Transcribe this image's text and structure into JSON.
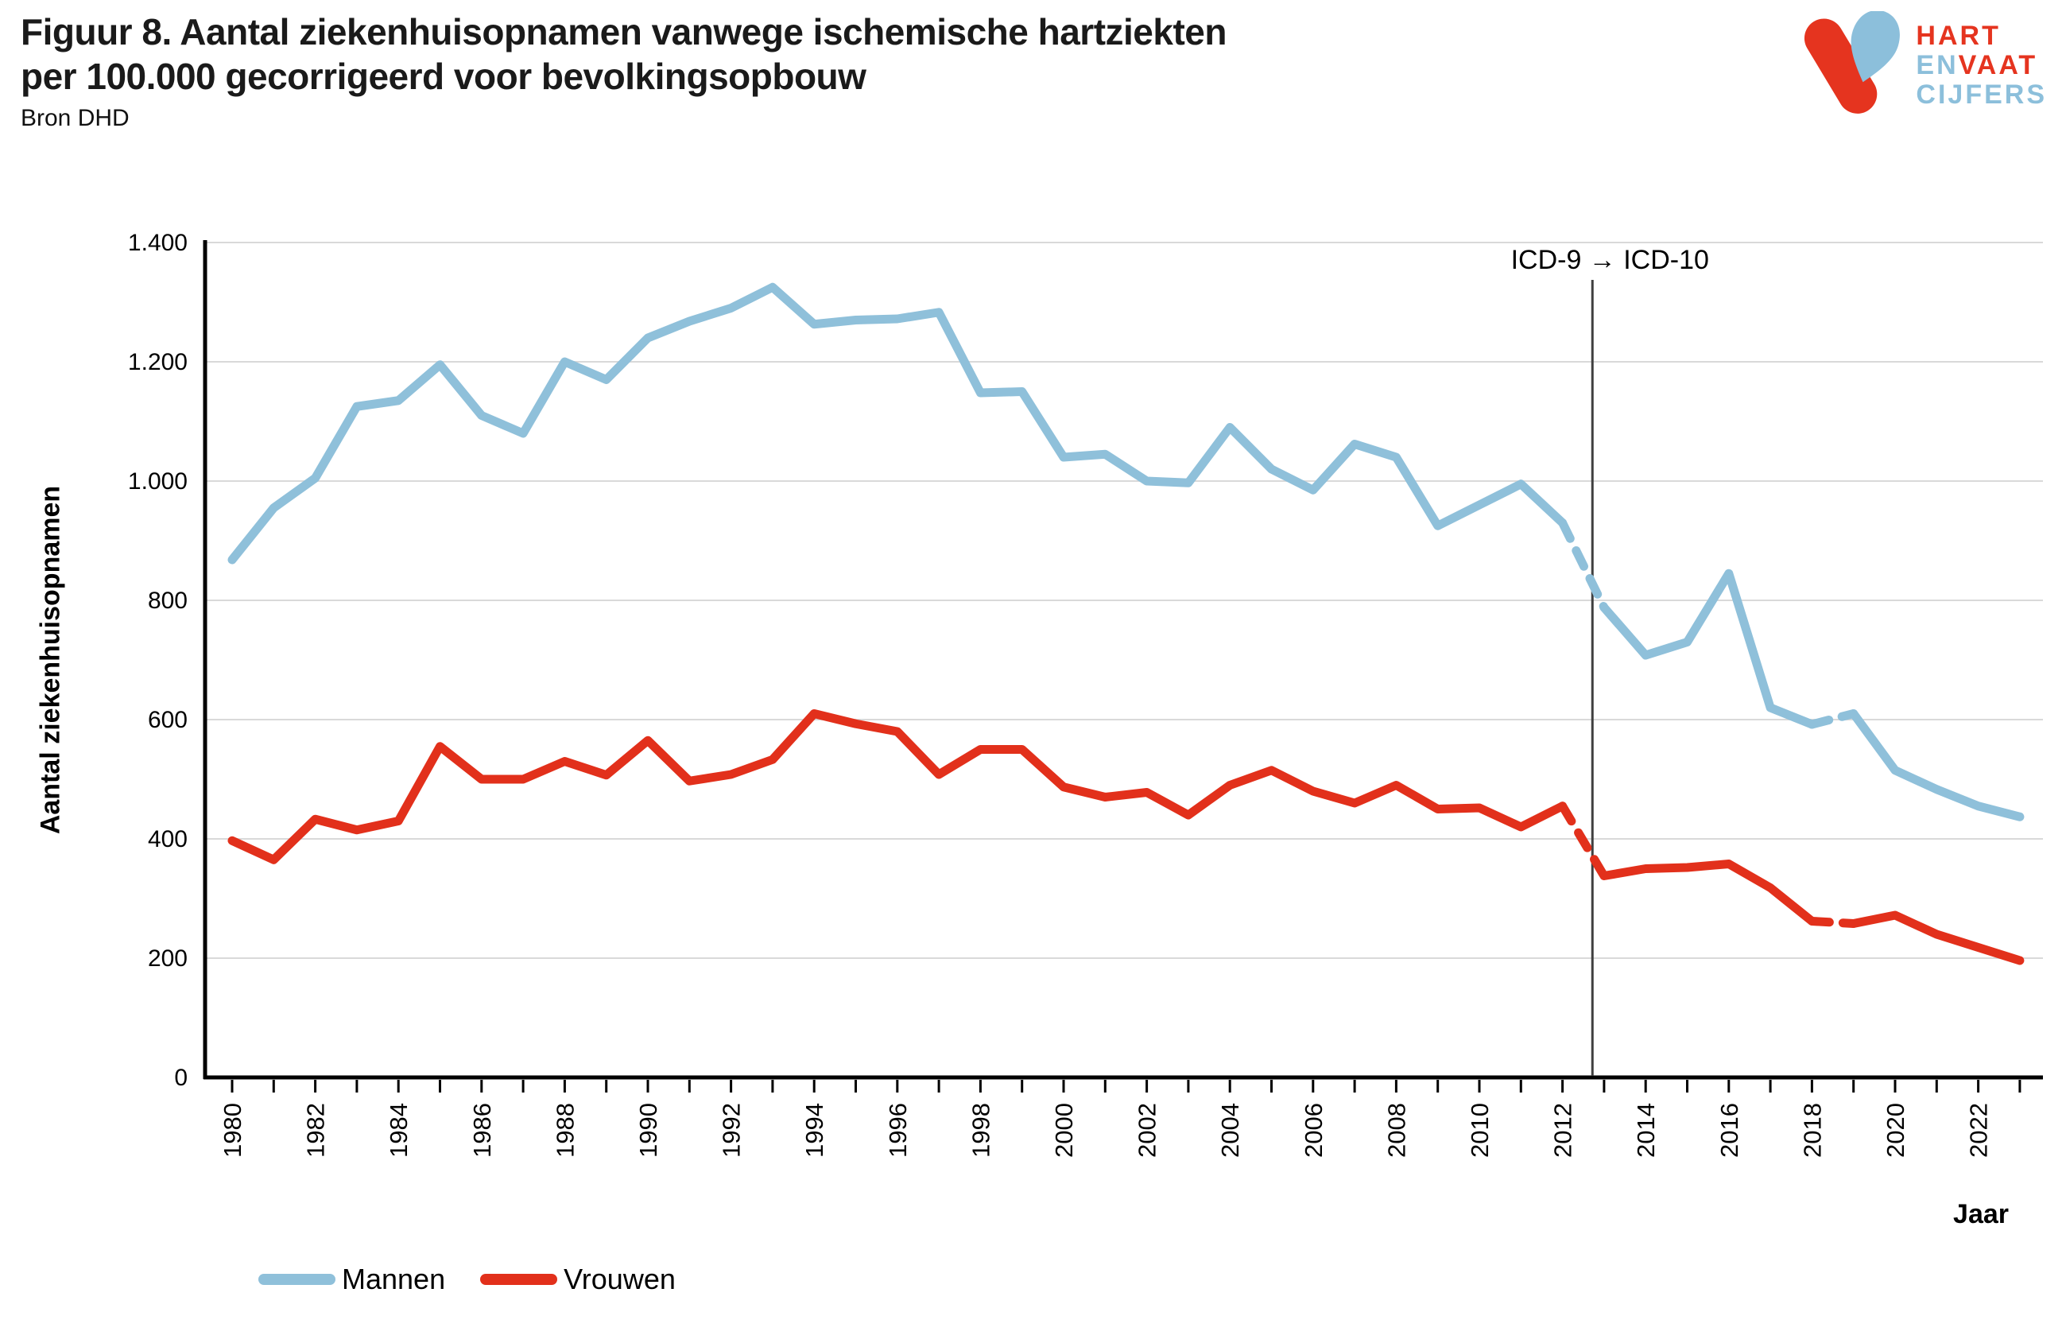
{
  "header": {
    "title_line1": "Figuur 8. Aantal ziekenhuisopnamen vanwege ischemische hartziekten",
    "title_line2": "per 100.000  gecorrigeerd voor bevolkingsopbouw",
    "source": "Bron DHD"
  },
  "logo": {
    "word1": "HART",
    "word2a": "EN",
    "word2b": "VAAT",
    "word3": "CIJFERS",
    "red": "#e5341f",
    "blue": "#8cbfdb"
  },
  "chart_data": {
    "type": "line",
    "title": "Figuur 8. Aantal ziekenhuisopnamen vanwege ischemische hartziekten per 100.000 gecorrigeerd voor bevolkingsopbouw",
    "source": "Bron DHD",
    "xlabel": "Jaar",
    "ylabel": "Aantal ziekenhuisopnamen",
    "ylim": [
      0,
      1400
    ],
    "ytick_values": [
      0,
      200,
      400,
      600,
      800,
      1000,
      1200,
      1400
    ],
    "ytick_labels": [
      "0",
      "200",
      "400",
      "600",
      "800",
      "1.000",
      "1.200",
      "1.400"
    ],
    "x_years": [
      1980,
      1981,
      1982,
      1983,
      1984,
      1985,
      1986,
      1987,
      1988,
      1989,
      1990,
      1991,
      1992,
      1993,
      1994,
      1995,
      1996,
      1997,
      1998,
      1999,
      2000,
      2001,
      2002,
      2003,
      2004,
      2005,
      2006,
      2007,
      2008,
      2009,
      2010,
      2011,
      2012,
      2013,
      2014,
      2015,
      2016,
      2017,
      2018,
      2019,
      2020,
      2021,
      2022,
      2023
    ],
    "xtick_label_years": [
      1980,
      1982,
      1984,
      1986,
      1988,
      1990,
      1992,
      1994,
      1996,
      1998,
      2000,
      2002,
      2004,
      2006,
      2008,
      2010,
      2012,
      2014,
      2016,
      2018,
      2020,
      2022
    ],
    "grid": "horizontal",
    "legend_position": "bottom-left",
    "grid_color": "#d9d9d9",
    "axis_color": "#000000",
    "series": [
      {
        "name": "Mannen",
        "color": "#8fc0da",
        "values": [
          868,
          955,
          1005,
          1125,
          1135,
          1195,
          1110,
          1080,
          1200,
          1170,
          1240,
          1268,
          1290,
          1325,
          1263,
          1270,
          1272,
          1283,
          1148,
          1150,
          1040,
          1045,
          1000,
          997,
          1090,
          1020,
          985,
          1062,
          1040,
          925,
          960,
          995,
          930,
          788,
          708,
          730,
          845,
          620,
          592,
          610,
          515,
          483,
          455,
          437
        ]
      },
      {
        "name": "Vrouwen",
        "color": "#e2301b",
        "values": [
          397,
          365,
          433,
          415,
          430,
          555,
          500,
          500,
          530,
          507,
          565,
          497,
          508,
          533,
          610,
          593,
          580,
          508,
          550,
          550,
          487,
          470,
          478,
          440,
          490,
          515,
          480,
          460,
          490,
          450,
          452,
          420,
          455,
          338,
          350,
          352,
          358,
          318,
          262,
          258,
          272,
          240,
          218,
          196
        ]
      }
    ],
    "dashed_segments": [
      [
        2012,
        2013
      ],
      [
        2018,
        2019
      ]
    ],
    "annotation": {
      "label": "ICD-9 → ICD-10",
      "x_year": 2012.72,
      "line_color": "#3f3f3f"
    }
  },
  "legend_note": "legend labels bound from chart_data.series names"
}
